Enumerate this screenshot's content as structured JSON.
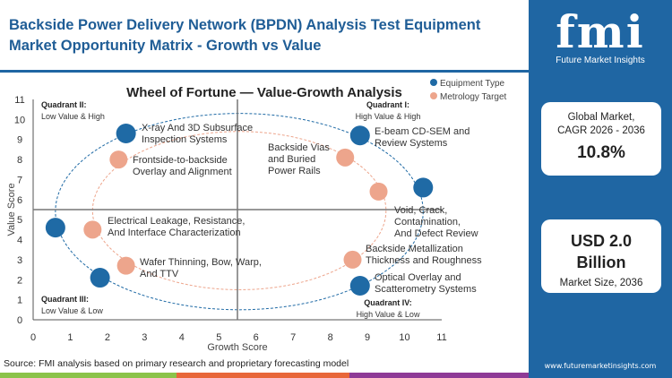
{
  "header": {
    "title_line1": "Backside Power Delivery Network (BPDN) Analysis Test Equipment",
    "title_line2": "Market Opportunity Matrix - Growth vs Value"
  },
  "sidebar": {
    "logo_text": "fmi",
    "logo_subtitle": "Future Market Insights",
    "card1_label_line1": "Global Market,",
    "card1_label_line2": "CAGR 2026 - 2036",
    "card1_value": "10.8%",
    "card2_value_line1": "USD 2.0",
    "card2_value_line2": "Billion",
    "card2_label": "Market Size, 2036",
    "url": "www.futuremarketinsights.com"
  },
  "footer": {
    "source": "Source: FMI analysis based on primary research and proprietary forecasting model"
  },
  "colors": {
    "brand_blue": "#1f66a3",
    "equipment": "#1f6aa5",
    "metrology": "#eda58c",
    "bar_green": "#8bc34a",
    "bar_orange": "#e8673a",
    "bar_purple": "#8e3a96"
  },
  "chart_data": {
    "type": "scatter",
    "title": "Wheel of Fortune — Value-Growth Analysis",
    "xlabel": "Growth Score",
    "ylabel": "Value Score",
    "xlim": [
      0,
      11
    ],
    "ylim": [
      0,
      11
    ],
    "xticks": [
      "0",
      "1",
      "2",
      "3",
      "4",
      "5",
      "6",
      "7",
      "8",
      "9",
      "10",
      "11"
    ],
    "yticks": [
      "0",
      "1",
      "2",
      "3",
      "4",
      "5",
      "6",
      "7",
      "8",
      "9",
      "10",
      "11"
    ],
    "quadrant_dividers": {
      "x": 5.5,
      "y": 5.5
    },
    "quadrants": [
      {
        "name": "Quadrant I:",
        "desc": "High Value & High"
      },
      {
        "name": "Quadrant II:",
        "desc": "Low Value & High"
      },
      {
        "name": "Quadrant III:",
        "desc": "Low Value & Low"
      },
      {
        "name": "Quadrant IV:",
        "desc": "High Value & Low"
      }
    ],
    "legend_position": "right",
    "series": [
      {
        "name": "Equipment Type",
        "color": "#1f6aa5",
        "points": [
          {
            "x": 2.5,
            "y": 9.3,
            "label": "X-ray And 3D Subsurface Inspection Systems"
          },
          {
            "x": 8.8,
            "y": 9.2,
            "label": "E-beam CD-SEM and Review Systems"
          },
          {
            "x": 10.5,
            "y": 6.6,
            "label": "Void, Crack, Contamination, And Defect Review"
          },
          {
            "x": 0.6,
            "y": 4.6,
            "label": ""
          },
          {
            "x": 1.8,
            "y": 2.1,
            "label": ""
          },
          {
            "x": 8.8,
            "y": 1.7,
            "label": "Optical Overlay and Scatterometry Systems"
          }
        ]
      },
      {
        "name": "Metrology Target",
        "color": "#eda58c",
        "points": [
          {
            "x": 2.3,
            "y": 8.0,
            "label": "Frontside-to-backside Overlay and Alignment"
          },
          {
            "x": 8.4,
            "y": 8.1,
            "label": "Backside Vias and Buried Power Rails"
          },
          {
            "x": 9.3,
            "y": 6.4,
            "label": ""
          },
          {
            "x": 1.6,
            "y": 4.5,
            "label": "Electrical Leakage, Resistance, And Interface Characterization"
          },
          {
            "x": 2.5,
            "y": 2.7,
            "label": "Wafer Thinning, Bow, Warp, And TTV"
          },
          {
            "x": 8.6,
            "y": 3.0,
            "label": "Backside Metallization Thickness and Roughness"
          }
        ]
      }
    ]
  }
}
